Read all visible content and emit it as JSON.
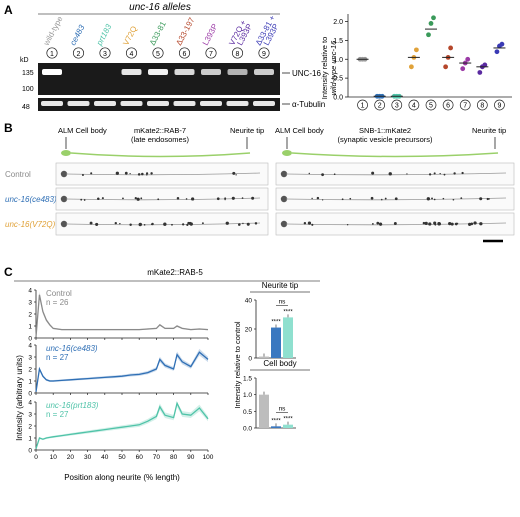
{
  "panelA": {
    "letter": "A",
    "header": "unc-16 alleles",
    "lanes": [
      {
        "label": "wild-type",
        "color": "#9a9a9a",
        "num": "1"
      },
      {
        "label": "ce483",
        "color": "#2f6fb5",
        "num": "2"
      },
      {
        "label": "prt183",
        "color": "#4fc3a8",
        "num": "3"
      },
      {
        "label": "V72Q",
        "color": "#e0a23a",
        "num": "4"
      },
      {
        "label": "Δ33-81",
        "color": "#3a9a5a",
        "num": "5"
      },
      {
        "label": "Δ33-197",
        "color": "#b5472b",
        "num": "6"
      },
      {
        "label": "L393P",
        "color": "#9b3aa6",
        "num": "7"
      },
      {
        "label": "V72Q + L393P",
        "color": "#5a2aa0",
        "num": "8"
      },
      {
        "label": "Δ33-81 + L393P",
        "color": "#3a3ab5",
        "num": "9"
      }
    ],
    "kd_label": "kD",
    "markers": [
      "135",
      "100",
      "48"
    ],
    "unc16_label": "UNC-16",
    "tubulin_label": "α-Tubulin"
  },
  "panelA_plot": {
    "ylabel_line1": "Intensity relative to",
    "ylabel_line2": "wild-type unc-16",
    "yticks": [
      "0.0",
      "0.5",
      "1.0",
      "1.5",
      "2.0"
    ],
    "xticks": [
      "1",
      "2",
      "3",
      "4",
      "5",
      "6",
      "7",
      "8",
      "9"
    ]
  },
  "chart_data": [
    {
      "type": "scatter",
      "categories": [
        "1",
        "2",
        "3",
        "4",
        "5",
        "6",
        "7",
        "8",
        "9"
      ],
      "ylim": [
        0,
        2.2
      ],
      "means": [
        1.0,
        0.02,
        0.02,
        1.05,
        1.8,
        1.05,
        0.9,
        0.8,
        1.3
      ],
      "points": [
        [
          1.0,
          1.0,
          1.0
        ],
        [
          0.02,
          0.02,
          0.02
        ],
        [
          0.02,
          0.02,
          0.02
        ],
        [
          0.8,
          1.05,
          1.25
        ],
        [
          1.65,
          1.95,
          2.1
        ],
        [
          0.8,
          1.05,
          1.3
        ],
        [
          0.75,
          0.9,
          1.0
        ],
        [
          0.65,
          0.8,
          0.85
        ],
        [
          1.2,
          1.35,
          1.4
        ]
      ],
      "colors": [
        "#9a9a9a",
        "#2f6fb5",
        "#4fc3a8",
        "#e0a23a",
        "#3a9a5a",
        "#b5472b",
        "#9b3aa6",
        "#5a2aa0",
        "#3a3ab5"
      ]
    },
    {
      "type": "line",
      "ylabel": "Intensity (arbitrary units)",
      "xlabel": "Position along neurite (% length)",
      "x": [
        0,
        2,
        4,
        6,
        8,
        10,
        15,
        20,
        25,
        30,
        35,
        40,
        45,
        50,
        55,
        60,
        65,
        70,
        72,
        75,
        80,
        82,
        85,
        90,
        95,
        100
      ],
      "series": [
        {
          "name": "Control",
          "n": "n = 26",
          "color": "#8a8a8a",
          "values": [
            0.1,
            3.6,
            2.2,
            1.5,
            1.1,
            0.8,
            0.7,
            0.7,
            0.7,
            0.7,
            0.7,
            0.7,
            0.7,
            0.7,
            0.7,
            0.7,
            0.75,
            0.8,
            1.1,
            0.8,
            0.8,
            1.0,
            0.8,
            0.7,
            0.75,
            0.7
          ]
        },
        {
          "name": "unc-16(ce483)",
          "n": "n = 27",
          "color": "#2f6fb5",
          "values": [
            0.1,
            2.0,
            1.4,
            1.1,
            1.0,
            1.0,
            1.05,
            1.1,
            1.15,
            1.2,
            1.25,
            1.3,
            1.35,
            1.4,
            1.5,
            1.55,
            1.7,
            2.0,
            2.8,
            2.3,
            2.0,
            3.2,
            2.6,
            2.2,
            3.4,
            2.8
          ]
        },
        {
          "name": "unc-16(prt183)",
          "n": "n = 27",
          "color": "#4fc3a8",
          "values": [
            0.1,
            1.0,
            0.9,
            1.0,
            1.05,
            1.1,
            1.2,
            1.3,
            1.4,
            1.5,
            1.6,
            1.7,
            1.8,
            1.9,
            2.0,
            2.1,
            2.4,
            2.8,
            3.6,
            2.9,
            2.7,
            3.9,
            3.0,
            2.9,
            3.5,
            2.6
          ]
        }
      ],
      "yticks": [
        "0",
        "1",
        "2",
        "3",
        "4"
      ],
      "xticks": [
        "0",
        "10",
        "20",
        "30",
        "40",
        "50",
        "60",
        "70",
        "80",
        "90",
        "100"
      ]
    },
    {
      "type": "bar",
      "title": "Neurite tip",
      "ylabel": "Intensity relative to control",
      "categories": [
        "Control",
        "ce483",
        "prt183"
      ],
      "values": [
        1,
        21,
        28
      ],
      "ylim": [
        0,
        40
      ],
      "yticks": [
        "0",
        "20",
        "40"
      ],
      "colors": [
        "#bdbdbd",
        "#3a78c0",
        "#8fe0cf"
      ],
      "annotations": [
        "****",
        "****",
        "ns"
      ]
    },
    {
      "type": "bar",
      "title": "Cell body",
      "categories": [
        "Control",
        "ce483",
        "prt183"
      ],
      "values": [
        1.0,
        0.05,
        0.1
      ],
      "ylim": [
        0,
        1.5
      ],
      "yticks": [
        "0.0",
        "0.5",
        "1.0",
        "1.5"
      ],
      "colors": [
        "#bdbdbd",
        "#3a78c0",
        "#8fe0cf"
      ],
      "annotations": [
        "****",
        "****",
        "ns"
      ]
    }
  ],
  "panelB": {
    "letter": "B",
    "left_cell": "ALM Cell body",
    "left_title_1": "mKate2::RAB-7",
    "left_title_2": "(late endosomes)",
    "left_tip": "Neurite tip",
    "right_cell": "ALM Cell body",
    "right_title_1": "SNB-1::mKate2",
    "right_title_2": "(synaptic vesicle precursors)",
    "right_tip": "Neurite tip",
    "rows": [
      {
        "label": "Control",
        "color": "#8a8a8a"
      },
      {
        "label": "unc-16(ce483)",
        "color": "#2f6fb5"
      },
      {
        "label": "unc-16(V72Q)",
        "color": "#e0a23a"
      }
    ]
  },
  "panelC": {
    "letter": "C",
    "header": "mKate2::RAB-5"
  }
}
